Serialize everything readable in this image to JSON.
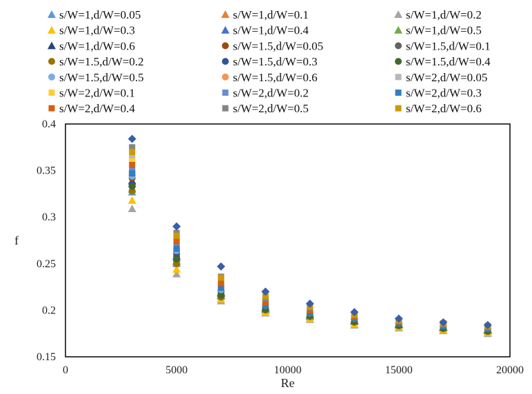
{
  "chart_data": {
    "type": "scatter",
    "title": "",
    "xlabel": "Re",
    "ylabel": "f",
    "xlim": [
      0,
      20000
    ],
    "ylim": [
      0.15,
      0.4
    ],
    "xticks": [
      "0",
      "5000",
      "10000",
      "15000",
      "20000"
    ],
    "yticks": [
      "0.15",
      "0.2",
      "0.25",
      "0.3",
      "0.35",
      "0.4"
    ],
    "grid": false,
    "legend_position": "top",
    "x": [
      3000,
      5000,
      7000,
      9000,
      11000,
      13000,
      15000,
      17000,
      19000
    ],
    "series": [
      {
        "name": "s/W=1,d/W=0.05",
        "marker": "triangle",
        "color": "#5b9bd5",
        "values": [
          0.327,
          0.25,
          0.215,
          0.2,
          0.193,
          0.188,
          0.184,
          0.181,
          0.178
        ]
      },
      {
        "name": "s/W=1,d/W=0.1",
        "marker": "triangle",
        "color": "#ed7d31",
        "values": [
          0.33,
          0.252,
          0.216,
          0.201,
          0.194,
          0.188,
          0.184,
          0.181,
          0.178
        ]
      },
      {
        "name": "s/W=1,d/W=0.2",
        "marker": "triangle",
        "color": "#a5a5a5",
        "values": [
          0.309,
          0.239,
          0.21,
          0.197,
          0.19,
          0.184,
          0.181,
          0.178,
          0.175
        ]
      },
      {
        "name": "s/W=1,d/W=0.3",
        "marker": "triangle",
        "color": "#ffc000",
        "values": [
          0.318,
          0.244,
          0.212,
          0.198,
          0.191,
          0.185,
          0.182,
          0.179,
          0.176
        ]
      },
      {
        "name": "s/W=1,d/W=0.4",
        "marker": "triangle",
        "color": "#4472c4",
        "values": [
          0.336,
          0.256,
          0.218,
          0.202,
          0.195,
          0.189,
          0.185,
          0.182,
          0.179
        ]
      },
      {
        "name": "s/W=1,d/W=0.5",
        "marker": "triangle",
        "color": "#70ad47",
        "values": [
          0.33,
          0.253,
          0.216,
          0.201,
          0.194,
          0.188,
          0.184,
          0.181,
          0.178
        ]
      },
      {
        "name": "s/W=1,d/W=0.6",
        "marker": "triangle",
        "color": "#264478",
        "values": [
          0.339,
          0.258,
          0.219,
          0.203,
          0.195,
          0.189,
          0.185,
          0.182,
          0.179
        ]
      },
      {
        "name": "s/W=1.5,d/W=0.05",
        "marker": "circle",
        "color": "#9e480e",
        "values": [
          0.342,
          0.26,
          0.22,
          0.203,
          0.196,
          0.19,
          0.186,
          0.183,
          0.18
        ]
      },
      {
        "name": "s/W=1.5,d/W=0.1",
        "marker": "circle",
        "color": "#636363",
        "values": [
          0.345,
          0.262,
          0.221,
          0.204,
          0.196,
          0.19,
          0.186,
          0.183,
          0.18
        ]
      },
      {
        "name": "s/W=1.5,d/W=0.2",
        "marker": "circle",
        "color": "#997300",
        "values": [
          0.328,
          0.25,
          0.214,
          0.2,
          0.193,
          0.187,
          0.183,
          0.18,
          0.177
        ]
      },
      {
        "name": "s/W=1.5,d/W=0.3",
        "marker": "circle",
        "color": "#2f5597",
        "values": [
          0.335,
          0.257,
          0.217,
          0.202,
          0.194,
          0.188,
          0.184,
          0.181,
          0.178
        ]
      },
      {
        "name": "s/W=1.5,d/W=0.4",
        "marker": "circle",
        "color": "#43682b",
        "values": [
          0.333,
          0.255,
          0.216,
          0.201,
          0.194,
          0.188,
          0.184,
          0.181,
          0.178
        ]
      },
      {
        "name": "s/W=1.5,d/W=0.5",
        "marker": "circle",
        "color": "#7cafdd",
        "values": [
          0.344,
          0.264,
          0.222,
          0.205,
          0.197,
          0.191,
          0.187,
          0.184,
          0.181
        ]
      },
      {
        "name": "s/W=1.5,d/W=0.6",
        "marker": "circle",
        "color": "#f1975a",
        "values": [
          0.348,
          0.266,
          0.224,
          0.206,
          0.198,
          0.192,
          0.187,
          0.184,
          0.181
        ]
      },
      {
        "name": "s/W=2,d/W=0.05",
        "marker": "square",
        "color": "#b7b7b7",
        "values": [
          0.364,
          0.279,
          0.23,
          0.21,
          0.201,
          0.194,
          0.189,
          0.186,
          0.183
        ]
      },
      {
        "name": "s/W=2,d/W=0.1",
        "marker": "square",
        "color": "#ffcd33",
        "values": [
          0.36,
          0.272,
          0.228,
          0.208,
          0.2,
          0.193,
          0.188,
          0.185,
          0.182
        ]
      },
      {
        "name": "s/W=2,d/W=0.2",
        "marker": "square",
        "color": "#698ed0",
        "values": [
          0.35,
          0.268,
          0.225,
          0.206,
          0.198,
          0.192,
          0.187,
          0.184,
          0.181
        ]
      },
      {
        "name": "s/W=2,d/W=0.3",
        "marker": "square",
        "color": "#327dc2",
        "values": [
          0.347,
          0.266,
          0.224,
          0.205,
          0.197,
          0.191,
          0.186,
          0.183,
          0.18
        ]
      },
      {
        "name": "s/W=2,d/W=0.4",
        "marker": "square",
        "color": "#d26012",
        "values": [
          0.356,
          0.274,
          0.229,
          0.208,
          0.2,
          0.193,
          0.188,
          0.185,
          0.182
        ]
      },
      {
        "name": "s/W=2,d/W=0.5",
        "marker": "square",
        "color": "#848484",
        "values": [
          0.375,
          0.283,
          0.236,
          0.213,
          0.203,
          0.195,
          0.189,
          0.185,
          0.182
        ]
      },
      {
        "name": "s/W=2,d/W=0.6",
        "marker": "square",
        "color": "#cc9a06",
        "values": [
          0.37,
          0.28,
          0.235,
          0.215,
          0.204,
          0.195,
          0.189,
          0.186,
          0.183
        ]
      },
      {
        "name": "",
        "marker": "diamond",
        "color": "#3b5ea8",
        "values": [
          0.384,
          0.29,
          0.247,
          0.22,
          0.207,
          0.198,
          0.191,
          0.187,
          0.184
        ]
      }
    ]
  }
}
